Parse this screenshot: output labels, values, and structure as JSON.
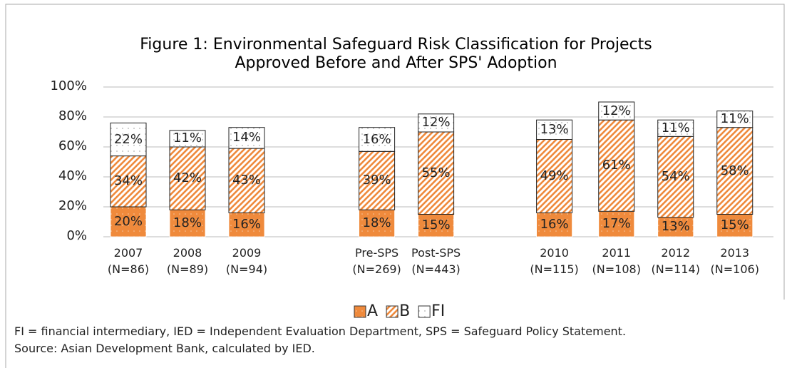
{
  "chart_data": {
    "type": "stacked_bar",
    "title": "Figure 1: Environmental Safeguard Risk Classification for Projects\nApproved Before and After SPS' Adoption",
    "categories": [
      "2007\n(N=86)",
      "2008\n(N=89)",
      "2009\n(N=94)",
      "Pre-SPS\n(N=269)",
      "Post-SPS\n(N=443)",
      "2010\n(N=115)",
      "2011\n(N=108)",
      "2012\n(N=114)",
      "2013\n(N=106)"
    ],
    "series": [
      {
        "name": "A",
        "color": "#ef8a3c",
        "pattern": "dots",
        "values": [
          20,
          18,
          16,
          18,
          15,
          16,
          17,
          13,
          15
        ],
        "value_labels": [
          "20%",
          "18%",
          "16%",
          "18%",
          "15%",
          "16%",
          "17%",
          "13%",
          "15%"
        ]
      },
      {
        "name": "B",
        "color": "#ef8a3c",
        "pattern": "hatch",
        "values": [
          34,
          42,
          43,
          39,
          55,
          49,
          61,
          54,
          58
        ],
        "value_labels": [
          "34%",
          "42%",
          "43%",
          "39%",
          "55%",
          "49%",
          "61%",
          "54%",
          "58%"
        ]
      },
      {
        "name": "FI",
        "color": "#b0b0b0",
        "pattern": "dots-light",
        "values": [
          22,
          11,
          14,
          16,
          12,
          13,
          12,
          11,
          11
        ],
        "value_labels": [
          "22%",
          "11%",
          "14%",
          "16%",
          "12%",
          "13%",
          "12%",
          "11%",
          "11%"
        ]
      }
    ],
    "ylim": [
      0,
      100
    ],
    "yticks": [
      {
        "value": 0,
        "label": "0%"
      },
      {
        "value": 20,
        "label": "20%"
      },
      {
        "value": 40,
        "label": "40%"
      },
      {
        "value": 60,
        "label": "60%"
      },
      {
        "value": 80,
        "label": "80%"
      },
      {
        "value": 100,
        "label": "100%"
      }
    ],
    "grid": true,
    "legend": "bottom",
    "notes": [
      "FI = financial intermediary, IED = Independent Evaluation Department, SPS = Safeguard Policy Statement.",
      "Source: Asian Development Bank, calculated by IED."
    ]
  }
}
